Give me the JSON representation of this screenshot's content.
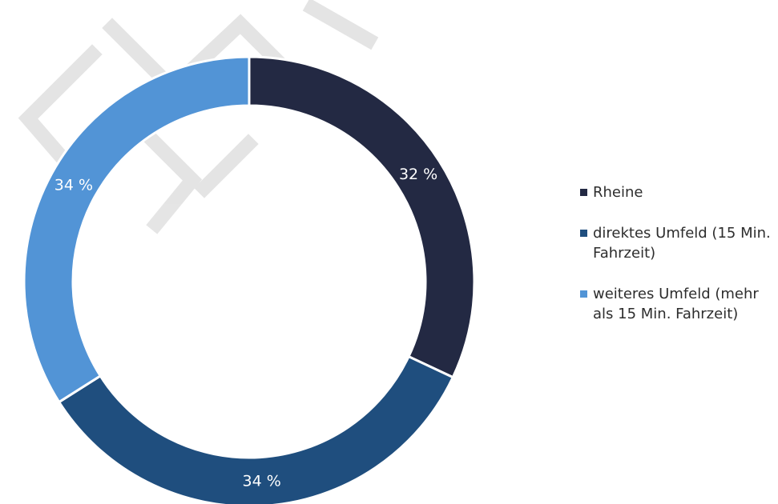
{
  "chart_data": {
    "type": "pie",
    "categories": [
      "Rheine",
      "direktes Umfeld (15 Min. Fahrzeit)",
      "weiteres Umfeld (mehr als 15 Min. Fahrzeit)"
    ],
    "values": [
      32,
      34,
      34
    ],
    "data_labels": [
      "32 %",
      "34 %",
      "34 %"
    ],
    "colors": [
      "#232943",
      "#1f4e7e",
      "#5294d6"
    ],
    "donut": true,
    "legend_position": "right"
  },
  "legend": {
    "items": [
      {
        "label": "Rheine",
        "color": "#232943"
      },
      {
        "label": "direktes Umfeld (15 Min. Fahrzeit)",
        "color": "#1f4e7e"
      },
      {
        "label": "weiteres Umfeld (mehr als 15 Min. Fahrzeit)",
        "color": "#5294d6"
      }
    ]
  }
}
